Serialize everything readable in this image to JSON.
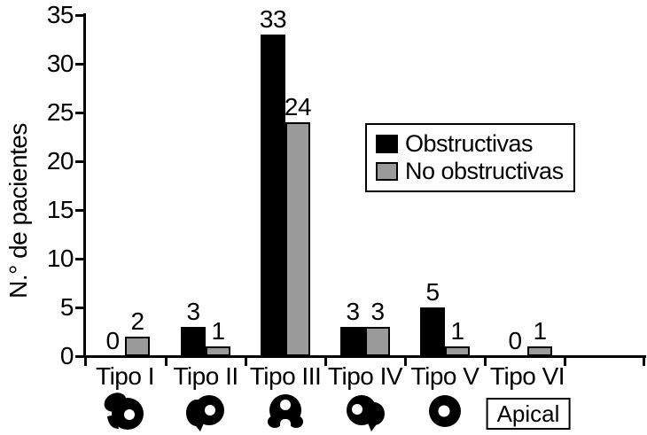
{
  "chart_data": {
    "type": "bar",
    "title": "",
    "xlabel": "",
    "ylabel": "N.° de pacientes",
    "categories": [
      "Tipo I",
      "Tipo II",
      "Tipo III",
      "Tipo IV",
      "Tipo V",
      "Tipo VI"
    ],
    "series": [
      {
        "name": "Obstructivas",
        "color": "#000000",
        "values": [
          0,
          3,
          33,
          3,
          5,
          0
        ]
      },
      {
        "name": "No obstructivas",
        "color": "#9a9a9a",
        "values": [
          2,
          1,
          24,
          3,
          1,
          1
        ]
      }
    ],
    "ylim": [
      0,
      35
    ],
    "yticks": [
      0,
      5,
      10,
      15,
      20,
      25,
      30,
      35
    ],
    "grid": false,
    "legend_position": "upper-right-inside",
    "category_icons": [
      "type1-heart-cross-section-icon",
      "type2-heart-cross-section-icon",
      "type3-heart-cross-section-icon",
      "type4-heart-cross-section-icon",
      "type5-heart-cross-section-icon",
      "apical-label"
    ],
    "apical_label": "Apical"
  }
}
